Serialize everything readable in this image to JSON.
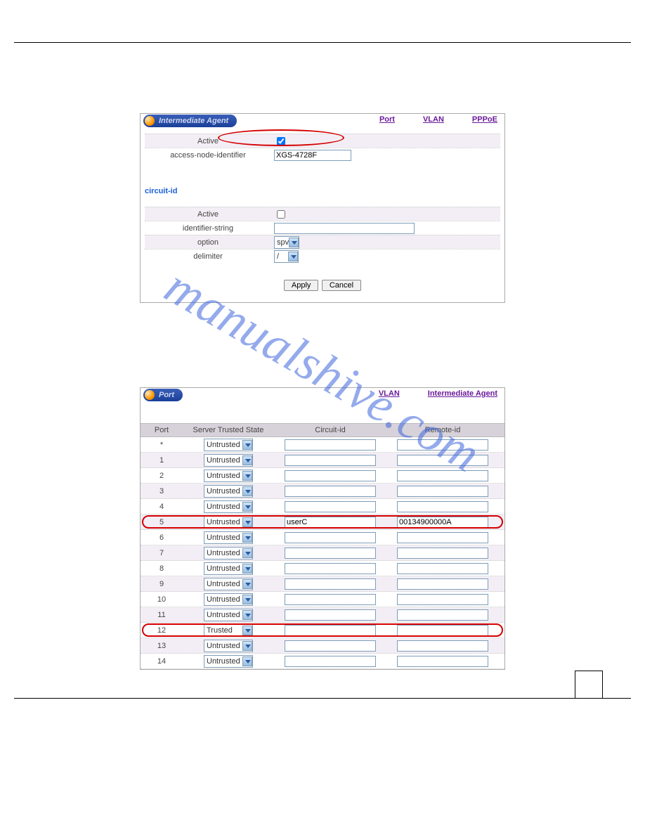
{
  "watermark": "manualshive.com",
  "panel1": {
    "title": "Intermediate Agent",
    "links": {
      "port": "Port",
      "vlan": "VLAN",
      "pppoe": "PPPoE"
    },
    "active_label": "Active",
    "active_checked": true,
    "ani_label": "access-node-identifier",
    "ani_value": "XGS-4728F",
    "circuit_title": "circuit-id",
    "c_active_label": "Active",
    "c_active_checked": false,
    "idstr_label": "identifier-string",
    "idstr_value": "",
    "option_label": "option",
    "option_value": "spv",
    "delimiter_label": "delimiter",
    "delimiter_value": "/",
    "apply": "Apply",
    "cancel": "Cancel"
  },
  "panel2": {
    "title": "Port",
    "links": {
      "vlan": "VLAN",
      "ia": "Intermediate Agent"
    },
    "columns": {
      "port": "Port",
      "sts": "Server Trusted State",
      "cid": "Circuit-id",
      "rid": "Remote-id"
    },
    "rows": [
      {
        "port": "*",
        "state": "Untrusted",
        "cid": "",
        "rid": "",
        "hl": false
      },
      {
        "port": "1",
        "state": "Untrusted",
        "cid": "",
        "rid": "",
        "hl": false
      },
      {
        "port": "2",
        "state": "Untrusted",
        "cid": "",
        "rid": "",
        "hl": false
      },
      {
        "port": "3",
        "state": "Untrusted",
        "cid": "",
        "rid": "",
        "hl": false
      },
      {
        "port": "4",
        "state": "Untrusted",
        "cid": "",
        "rid": "",
        "hl": false
      },
      {
        "port": "5",
        "state": "Untrusted",
        "cid": "userC",
        "rid": "00134900000A",
        "hl": true
      },
      {
        "port": "6",
        "state": "Untrusted",
        "cid": "",
        "rid": "",
        "hl": false
      },
      {
        "port": "7",
        "state": "Untrusted",
        "cid": "",
        "rid": "",
        "hl": false
      },
      {
        "port": "8",
        "state": "Untrusted",
        "cid": "",
        "rid": "",
        "hl": false
      },
      {
        "port": "9",
        "state": "Untrusted",
        "cid": "",
        "rid": "",
        "hl": false
      },
      {
        "port": "10",
        "state": "Untrusted",
        "cid": "",
        "rid": "",
        "hl": false
      },
      {
        "port": "11",
        "state": "Untrusted",
        "cid": "",
        "rid": "",
        "hl": false
      },
      {
        "port": "12",
        "state": "Trusted",
        "cid": "",
        "rid": "",
        "hl": true
      },
      {
        "port": "13",
        "state": "Untrusted",
        "cid": "",
        "rid": "",
        "hl": false
      },
      {
        "port": "14",
        "state": "Untrusted",
        "cid": "",
        "rid": "",
        "hl": false
      }
    ]
  },
  "colors": {
    "highlight": "#d40000",
    "link": "#6a1a9a",
    "pill": "#1a3f98"
  }
}
